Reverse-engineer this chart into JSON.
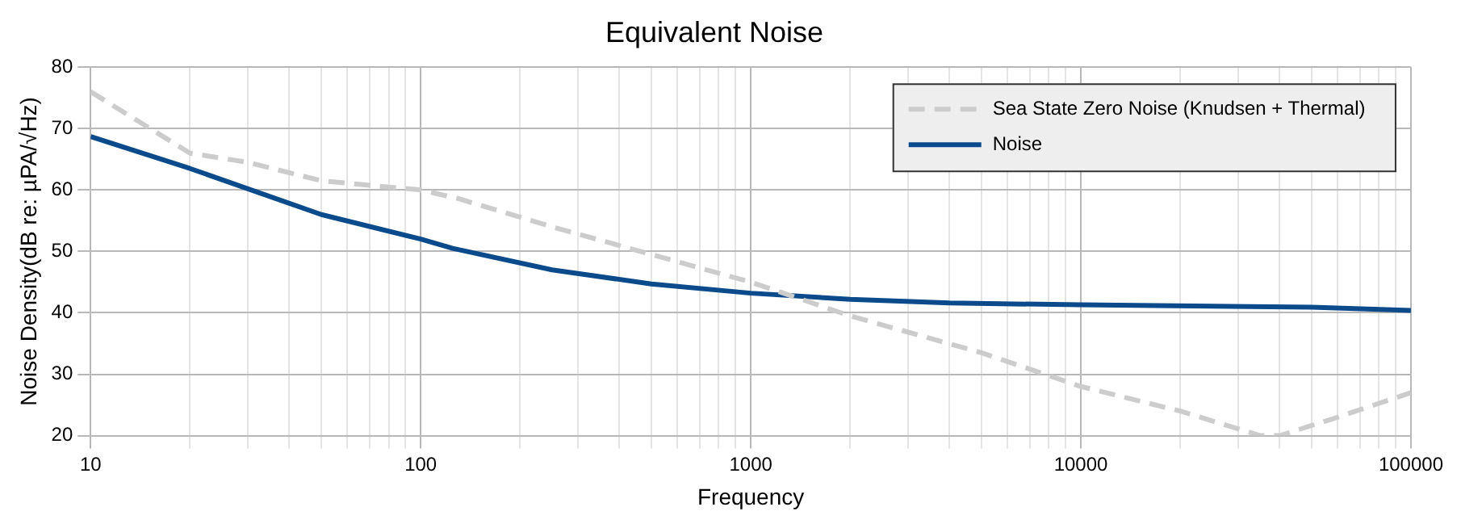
{
  "chart_data": {
    "type": "line",
    "title": "Equivalent Noise",
    "xlabel": "Frequency",
    "ylabel": "Noise Density(dB re: µPA/√Hz)",
    "log": "x",
    "grid": true,
    "legend": "top right",
    "marker": "none",
    "xlim": [
      10,
      100000
    ],
    "ylim": [
      20,
      80
    ],
    "xticks": [
      10,
      {
        "value": 20,
        "label": null
      },
      {
        "value": 30,
        "label": null
      },
      {
        "value": 40,
        "label": null
      },
      {
        "value": 50,
        "label": null
      },
      {
        "value": 60,
        "label": null
      },
      {
        "value": 70,
        "label": null
      },
      {
        "value": 80,
        "label": null
      },
      {
        "value": 90,
        "label": null
      },
      100,
      {
        "value": 200,
        "label": null
      },
      {
        "value": 300,
        "label": null
      },
      {
        "value": 400,
        "label": null
      },
      {
        "value": 500,
        "label": null
      },
      {
        "value": 600,
        "label": null
      },
      {
        "value": 700,
        "label": null
      },
      {
        "value": 800,
        "label": null
      },
      {
        "value": 900,
        "label": null
      },
      1000,
      {
        "value": 2000,
        "label": null
      },
      {
        "value": 3000,
        "label": null
      },
      {
        "value": 4000,
        "label": null
      },
      {
        "value": 5000,
        "label": null
      },
      {
        "value": 6000,
        "label": null
      },
      {
        "value": 7000,
        "label": null
      },
      {
        "value": 8000,
        "label": null
      },
      {
        "value": 9000,
        "label": null
      },
      10000,
      {
        "value": 20000,
        "label": null
      },
      {
        "value": 30000,
        "label": null
      },
      {
        "value": 40000,
        "label": null
      },
      {
        "value": 50000,
        "label": null
      },
      {
        "value": 60000,
        "label": null
      },
      {
        "value": 70000,
        "label": null
      },
      {
        "value": 80000,
        "label": null
      },
      {
        "value": 90000,
        "label": null
      },
      100000
    ],
    "yticks": [
      20,
      30,
      40,
      50,
      60,
      70,
      80
    ],
    "series": [
      {
        "name": "Sea State Zero Noise (Knudsen + Thermal)",
        "color": "#cccccc",
        "line_style": "dashed",
        "x": [
          10,
          20,
          30,
          50,
          100,
          130,
          250,
          500,
          1000,
          2000,
          5000,
          10000,
          20000,
          35000,
          40000,
          60000,
          100000
        ],
        "values": [
          76,
          66,
          64.5,
          61.5,
          60,
          58.6,
          54,
          49.5,
          45,
          39.5,
          33.5,
          28,
          24,
          20,
          20,
          23,
          27
        ]
      },
      {
        "name": "Noise",
        "color": "#0b4a8b",
        "line_style": "solid",
        "x": [
          10,
          20,
          50,
          100,
          125,
          250,
          500,
          1000,
          2000,
          4000,
          10000,
          50000,
          100000
        ],
        "values": [
          68.7,
          63.5,
          56,
          52,
          50.5,
          47,
          44.7,
          43.2,
          42.2,
          41.6,
          41.3,
          40.9,
          40.4
        ]
      }
    ]
  }
}
